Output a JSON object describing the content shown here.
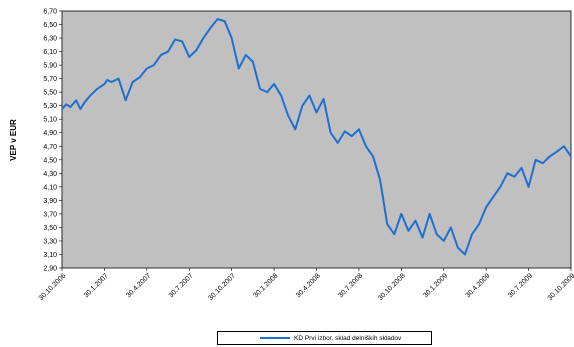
{
  "chart_data": {
    "type": "line",
    "title": "",
    "xlabel": "",
    "ylabel": "VEP v EUR",
    "ylim": [
      2.9,
      6.7
    ],
    "y_ticks": [
      "2,90",
      "3,10",
      "3,30",
      "3,50",
      "3,70",
      "3,90",
      "4,10",
      "4,30",
      "4,50",
      "4,70",
      "4,90",
      "5,10",
      "5,30",
      "5,50",
      "5,70",
      "5,90",
      "6,10",
      "6,30",
      "6,50",
      "6,70"
    ],
    "x_ticks": [
      "30.10.2006",
      "30.1.2007",
      "30.4.2007",
      "30.7.2007",
      "30.10.2007",
      "30.1.2008",
      "30.4.2008",
      "30.7.2008",
      "30.10.2008",
      "30.1.2009",
      "30.4.2009",
      "30.7.2009",
      "30.10.2009"
    ],
    "grid": false,
    "plot_background": "#c0c0c0",
    "legend_position": "bottom",
    "series": [
      {
        "name": "KD Prvi izbor, sklad delniških skladov",
        "color": "#1f6fd1",
        "x": [
          0,
          0.3,
          0.6,
          1,
          1.3,
          1.6,
          2,
          2.5,
          3,
          3.2,
          3.5,
          4,
          4.5,
          5,
          5.5,
          6,
          6.5,
          7,
          7.5,
          8,
          8.5,
          9,
          9.5,
          10,
          10.5,
          11,
          11.5,
          12,
          12.5,
          13,
          13.5,
          14,
          14.5,
          15,
          15.5,
          16,
          16.5,
          17,
          17.5,
          18,
          18.5,
          19,
          19.5,
          20,
          20.5,
          21,
          21.5,
          22,
          22.5,
          23,
          23.5,
          24,
          24.5,
          25,
          25.5,
          26,
          26.5,
          27,
          27.5,
          28,
          28.5,
          29,
          29.5,
          30,
          30.5,
          31,
          31.5,
          32,
          32.5,
          33,
          33.5,
          34,
          34.5,
          35,
          35.5,
          36
        ],
        "values": [
          5.25,
          5.32,
          5.28,
          5.38,
          5.25,
          5.35,
          5.45,
          5.55,
          5.62,
          5.68,
          5.65,
          5.7,
          5.38,
          5.65,
          5.72,
          5.85,
          5.9,
          6.05,
          6.1,
          6.28,
          6.25,
          6.02,
          6.12,
          6.3,
          6.45,
          6.58,
          6.55,
          6.3,
          5.85,
          6.05,
          5.95,
          5.55,
          5.5,
          5.62,
          5.45,
          5.15,
          4.95,
          5.3,
          5.45,
          5.2,
          5.4,
          4.9,
          4.75,
          4.92,
          4.85,
          4.95,
          4.7,
          4.55,
          4.2,
          3.55,
          3.4,
          3.7,
          3.45,
          3.6,
          3.35,
          3.7,
          3.4,
          3.3,
          3.5,
          3.2,
          3.1,
          3.4,
          3.55,
          3.8,
          3.95,
          4.1,
          4.3,
          4.25,
          4.38,
          4.1,
          4.5,
          4.45,
          4.55,
          4.62,
          4.7,
          4.55
        ]
      }
    ]
  }
}
